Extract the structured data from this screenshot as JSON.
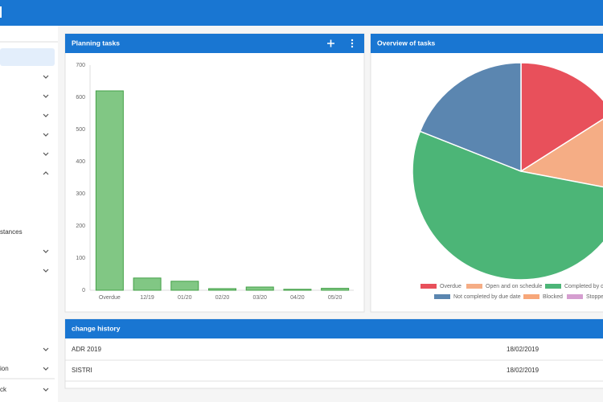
{
  "sidebar": {
    "items": [
      "stances",
      "ion",
      "ck"
    ]
  },
  "planning": {
    "title": "Planning tasks",
    "chart_data": {
      "type": "bar",
      "categories": [
        "Overdue",
        "12/19",
        "01/20",
        "02/20",
        "03/20",
        "04/20",
        "05/20"
      ],
      "values": [
        620,
        38,
        28,
        5,
        10,
        3,
        6
      ],
      "color": "#81c784",
      "edge_color": "#43a047",
      "ylim": [
        0,
        700
      ],
      "yticks": [
        0,
        100,
        200,
        300,
        400,
        500,
        600,
        700
      ],
      "grid": false
    }
  },
  "overview": {
    "title": "Overview of tasks",
    "chart_data": {
      "type": "pie",
      "categories": [
        "Overdue",
        "Open and on schedule",
        "Completed by du",
        "Not completed by due date",
        "Blocked",
        "Stoppe"
      ],
      "values": [
        16,
        12,
        53,
        19,
        0,
        0
      ],
      "colors": [
        "#e8505b",
        "#f5ad85",
        "#4cb577",
        "#5b86b0",
        "#f7a77a",
        "#d59ed0"
      ]
    }
  },
  "history": {
    "title": "change history",
    "rows": [
      [
        "ADR 2019",
        "18/02/2019"
      ],
      [
        "SISTRI",
        "18/02/2019"
      ]
    ]
  }
}
